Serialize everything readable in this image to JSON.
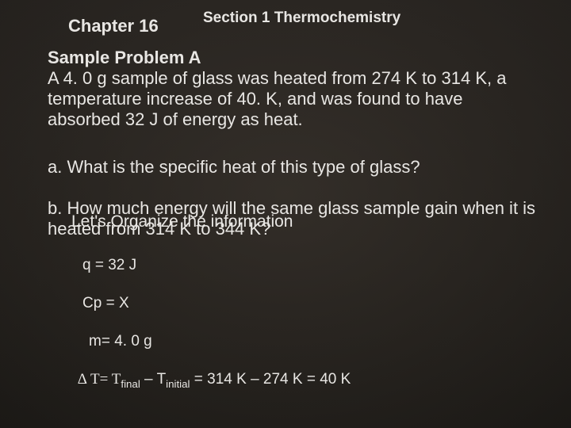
{
  "header": {
    "chapter": "Chapter 16",
    "section": "Section 1  Thermochemistry"
  },
  "title": "Sample Problem A",
  "problem_text": "A 4. 0 g sample of glass was heated from 274 K to 314 K, a temperature increase of 40. K, and was found to have absorbed 32 J of energy as heat.",
  "question_a": "a. What is the specific heat of this type of glass?",
  "question_b": "b. How much energy will the same glass sample gain when it is heated from 314 K to 344 K?",
  "organize": "Let's Organize the information",
  "work": {
    "q": "q = 32 J",
    "cp": "Cp = X",
    "m": "m=  4. 0 g",
    "dt_pre": "∆ T= T",
    "dt_sub1": "final",
    "dt_mid1": " – T",
    "dt_sub2": "initial",
    "dt_mid2": " = 314 K – 274 K = 40 K"
  }
}
